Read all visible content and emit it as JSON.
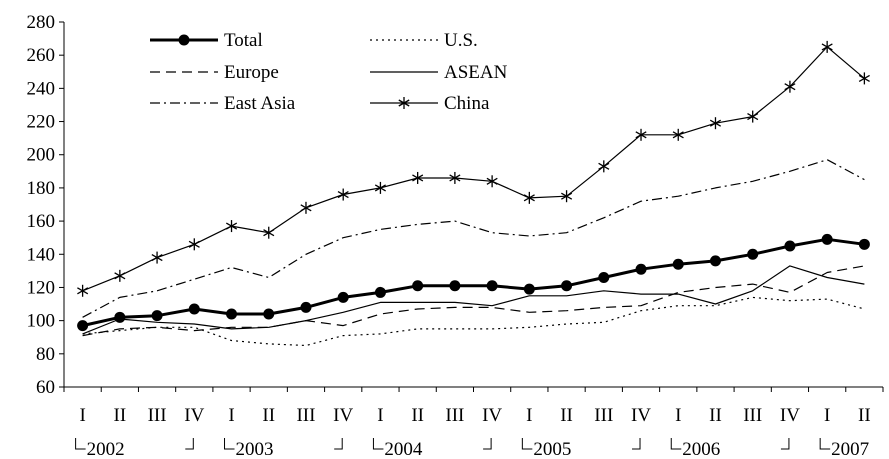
{
  "chart_data": {
    "type": "line",
    "title": "",
    "xlabel": "",
    "ylabel": "",
    "ylim": [
      60,
      280
    ],
    "yticks": [
      60,
      80,
      100,
      120,
      140,
      160,
      180,
      200,
      220,
      240,
      260,
      280
    ],
    "quarter_labels": [
      "I",
      "II",
      "III",
      "IV",
      "I",
      "II",
      "III",
      "IV",
      "I",
      "II",
      "III",
      "IV",
      "I",
      "II",
      "III",
      "IV",
      "I",
      "II",
      "III",
      "IV",
      "I",
      "II"
    ],
    "year_labels": [
      {
        "label": "2002",
        "start": 0,
        "end": 3
      },
      {
        "label": "2003",
        "start": 4,
        "end": 7
      },
      {
        "label": "2004",
        "start": 8,
        "end": 11
      },
      {
        "label": "2005",
        "start": 12,
        "end": 15
      },
      {
        "label": "2006",
        "start": 16,
        "end": 19
      },
      {
        "label": "2007",
        "start": 20,
        "end": 21
      }
    ],
    "legend": {
      "placement": "top-left",
      "columns": 2
    },
    "series": [
      {
        "name": "Total",
        "style": "total",
        "values": [
          97,
          102,
          103,
          107,
          104,
          104,
          108,
          114,
          117,
          121,
          121,
          121,
          119,
          121,
          126,
          131,
          134,
          136,
          140,
          145,
          149,
          146
        ]
      },
      {
        "name": "U.S.",
        "style": "us",
        "values": [
          92,
          94,
          96,
          96,
          88,
          86,
          85,
          91,
          92,
          95,
          95,
          95,
          96,
          98,
          99,
          106,
          109,
          109,
          114,
          112,
          113,
          107
        ]
      },
      {
        "name": "Europe",
        "style": "europe",
        "values": [
          91,
          95,
          96,
          94,
          96,
          96,
          100,
          97,
          104,
          107,
          108,
          108,
          105,
          106,
          108,
          109,
          117,
          120,
          122,
          117,
          129,
          133
        ]
      },
      {
        "name": "ASEAN",
        "style": "asean",
        "values": [
          92,
          101,
          99,
          98,
          95,
          96,
          100,
          105,
          111,
          111,
          111,
          109,
          115,
          115,
          118,
          116,
          116,
          110,
          118,
          133,
          126,
          122
        ]
      },
      {
        "name": "East Asia",
        "style": "eastasia",
        "values": [
          102,
          114,
          118,
          125,
          132,
          126,
          140,
          150,
          155,
          158,
          160,
          153,
          151,
          153,
          162,
          172,
          175,
          180,
          184,
          190,
          197,
          185
        ]
      },
      {
        "name": "China",
        "style": "china",
        "values": [
          118,
          127,
          138,
          146,
          157,
          153,
          168,
          176,
          180,
          186,
          186,
          184,
          174,
          175,
          193,
          212,
          212,
          219,
          223,
          241,
          265,
          246
        ]
      }
    ]
  }
}
